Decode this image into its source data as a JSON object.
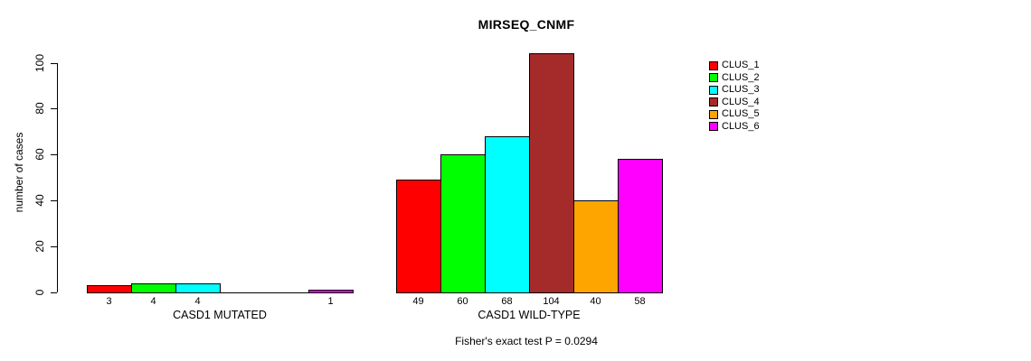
{
  "chart_data": {
    "type": "bar",
    "title": "MIRSEQ_CNMF",
    "ylabel": "number of cases",
    "xlabel": "",
    "ylim": [
      0,
      100
    ],
    "yticks": [
      0,
      20,
      40,
      60,
      80,
      100
    ],
    "grid": false,
    "legend_position": "right",
    "categories": [
      "CASD1 MUTATED",
      "CASD1 WILD-TYPE"
    ],
    "series": [
      {
        "name": "CLUS_1",
        "color": "#ff0000",
        "values": [
          3,
          49
        ]
      },
      {
        "name": "CLUS_2",
        "color": "#00ff00",
        "values": [
          4,
          60
        ]
      },
      {
        "name": "CLUS_3",
        "color": "#00ffff",
        "values": [
          4,
          68
        ]
      },
      {
        "name": "CLUS_4",
        "color": "#a52a2a",
        "values": [
          0,
          104
        ]
      },
      {
        "name": "CLUS_5",
        "color": "#ffa500",
        "values": [
          0,
          40
        ]
      },
      {
        "name": "CLUS_6",
        "color": "#ff00ff",
        "values": [
          1,
          58
        ]
      }
    ],
    "annotation": "Fisher's exact test P = 0.0294"
  }
}
